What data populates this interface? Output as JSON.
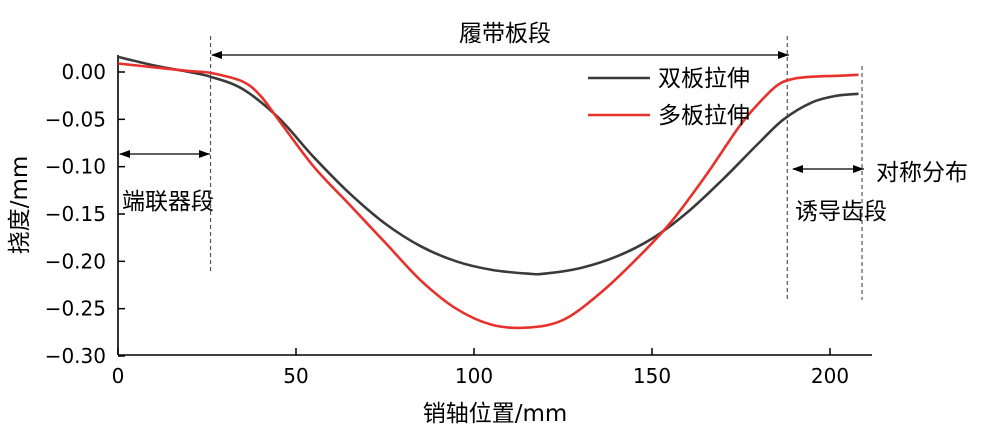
{
  "chart_data": {
    "type": "line",
    "xlabel": "销轴位置/mm",
    "ylabel": "挠度/mm",
    "xlim": [
      0,
      212
    ],
    "ylim": [
      -0.3,
      0.02
    ],
    "x_ticks": [
      0,
      50,
      100,
      150,
      200
    ],
    "x_tick_labels": [
      "0",
      "50",
      "100",
      "150",
      "200"
    ],
    "y_ticks": [
      0.0,
      -0.05,
      -0.1,
      -0.15,
      -0.2,
      -0.25,
      -0.3
    ],
    "y_tick_labels": [
      "0.00",
      "−0.05",
      "−0.10",
      "−0.15",
      "−0.20",
      "−0.25",
      "−0.30"
    ],
    "legend_position": "top-right",
    "series": [
      {
        "name": "双板拉伸",
        "color": "#3a3a3a",
        "x": [
          0,
          10,
          20,
          26,
          35,
          45,
          55,
          65,
          75,
          85,
          95,
          105,
          115,
          120,
          130,
          140,
          150,
          160,
          170,
          180,
          187,
          195,
          202,
          208
        ],
        "y": [
          0.016,
          0.007,
          0.0,
          -0.005,
          -0.018,
          -0.048,
          -0.09,
          -0.128,
          -0.16,
          -0.184,
          -0.2,
          -0.209,
          -0.213,
          -0.213,
          -0.207,
          -0.195,
          -0.176,
          -0.148,
          -0.113,
          -0.075,
          -0.05,
          -0.032,
          -0.025,
          -0.023
        ]
      },
      {
        "name": "多板拉伸",
        "color": "#e8312b",
        "x": [
          0,
          10,
          20,
          26,
          35,
          40,
          45,
          55,
          65,
          75,
          85,
          95,
          105,
          115,
          125,
          135,
          145,
          155,
          165,
          175,
          182,
          186,
          190,
          195,
          202,
          208
        ],
        "y": [
          0.009,
          0.005,
          0.001,
          -0.001,
          -0.01,
          -0.025,
          -0.05,
          -0.1,
          -0.14,
          -0.18,
          -0.22,
          -0.25,
          -0.267,
          -0.27,
          -0.262,
          -0.235,
          -0.2,
          -0.16,
          -0.11,
          -0.055,
          -0.025,
          -0.012,
          -0.007,
          -0.005,
          -0.004,
          -0.003
        ]
      }
    ],
    "annotations": {
      "track_segment": "履带板段",
      "end_connector": "端联器段",
      "symmetric": "对称分布",
      "guide_tooth": "诱导齿段"
    },
    "markers_x": [
      26,
      188,
      209
    ]
  }
}
